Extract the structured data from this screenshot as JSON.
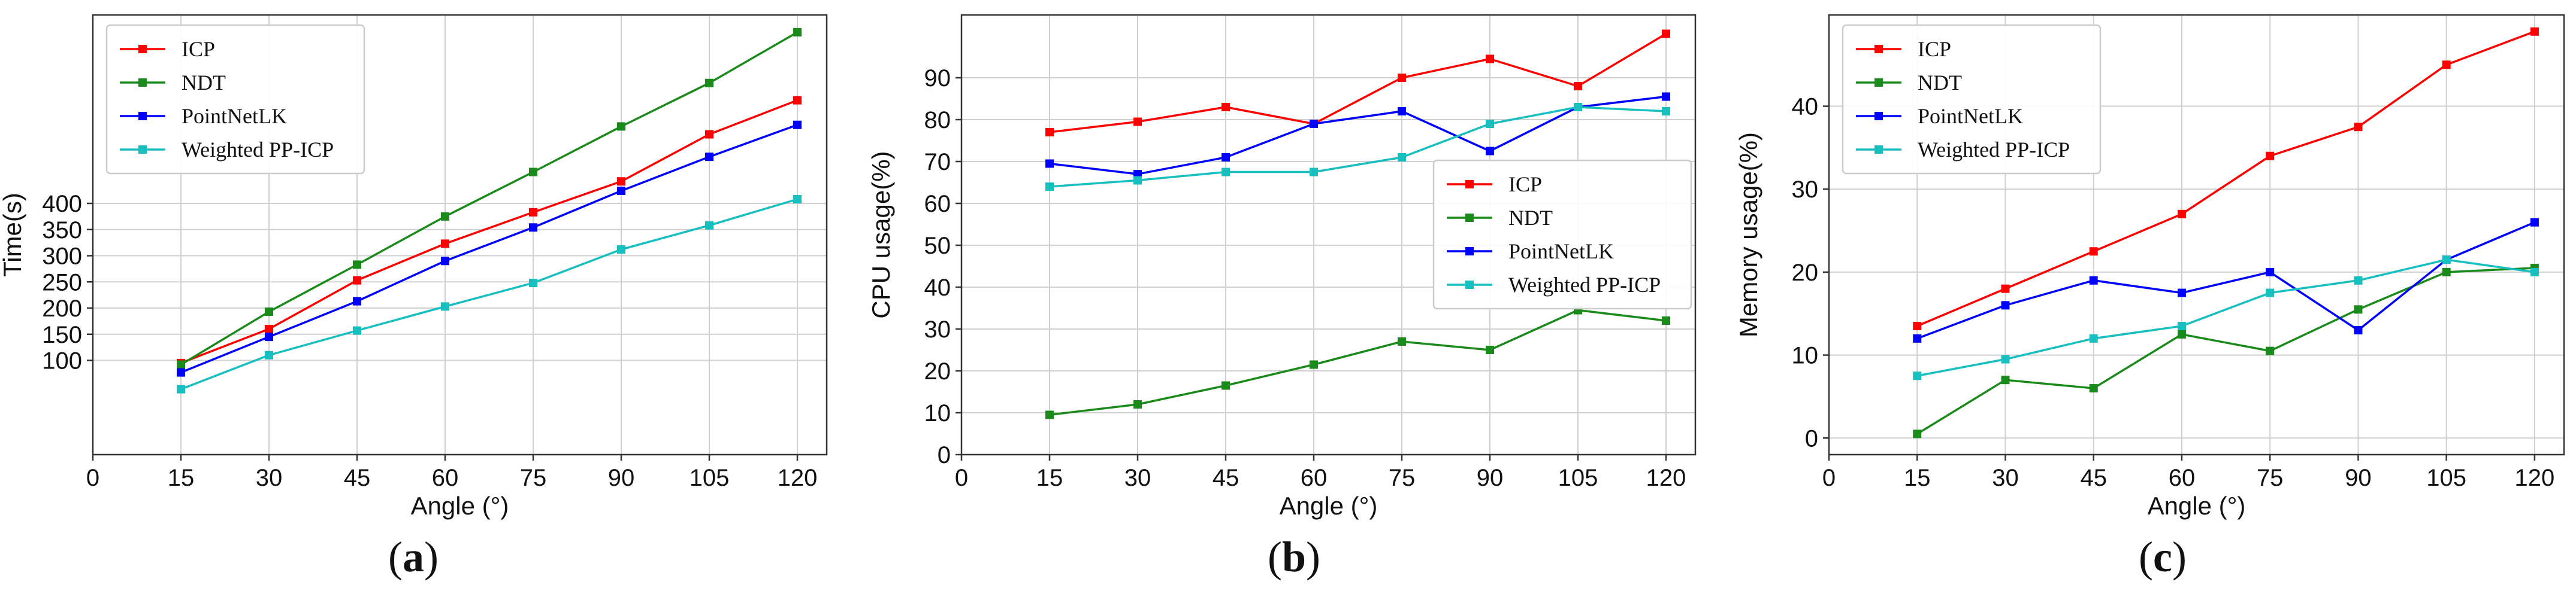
{
  "colors": {
    "ICP": "#ff0000",
    "NDT": "#1a8a1a",
    "PointNetLK": "#0000ff",
    "Weighted PP-ICP": "#18bfbf",
    "grid": "#cfcfcf",
    "axis": "#333333"
  },
  "chart_data": [
    {
      "type": "line",
      "panel": "a",
      "xlabel": "Angle (°)",
      "ylabel": "Time(s)",
      "xlim": [
        0,
        125
      ],
      "ylim": [
        -80,
        760
      ],
      "xticks": [
        0,
        15,
        30,
        45,
        60,
        75,
        90,
        105,
        120
      ],
      "yticks": [
        100,
        150,
        200,
        250,
        300,
        350,
        400
      ],
      "legend_position": "top-left",
      "x": [
        15,
        30,
        45,
        60,
        75,
        90,
        105,
        120
      ],
      "series": [
        {
          "name": "ICP",
          "values": [
            95,
            160,
            253,
            323,
            383,
            442,
            532,
            597
          ]
        },
        {
          "name": "NDT",
          "values": [
            92,
            193,
            283,
            375,
            460,
            547,
            630,
            727
          ]
        },
        {
          "name": "PointNetLK",
          "values": [
            77,
            145,
            213,
            290,
            354,
            424,
            489,
            550
          ]
        },
        {
          "name": "Weighted PP-ICP",
          "values": [
            45,
            110,
            157,
            203,
            248,
            312,
            358,
            408
          ]
        }
      ]
    },
    {
      "type": "line",
      "panel": "b",
      "xlabel": "Angle (°)",
      "ylabel": "CPU usage(%)",
      "xlim": [
        0,
        125
      ],
      "ylim": [
        0,
        105
      ],
      "xticks": [
        0,
        15,
        30,
        45,
        60,
        75,
        90,
        105,
        120
      ],
      "yticks": [
        0,
        10,
        20,
        30,
        40,
        50,
        60,
        70,
        80,
        90
      ],
      "legend_position": "center-right",
      "x": [
        15,
        30,
        45,
        60,
        75,
        90,
        105,
        120
      ],
      "series": [
        {
          "name": "ICP",
          "values": [
            77,
            79.5,
            83,
            79,
            90,
            94.5,
            88,
            100.5
          ]
        },
        {
          "name": "NDT",
          "values": [
            9.5,
            12,
            16.5,
            21.5,
            27,
            25,
            34.5,
            32
          ]
        },
        {
          "name": "PointNetLK",
          "values": [
            69.5,
            67,
            71,
            79,
            82,
            72.5,
            83,
            85.5
          ]
        },
        {
          "name": "Weighted PP-ICP",
          "values": [
            64,
            65.5,
            67.5,
            67.5,
            71,
            79,
            83,
            82
          ]
        }
      ]
    },
    {
      "type": "line",
      "panel": "c",
      "xlabel": "Angle (°)",
      "ylabel": "Memory usage(%)",
      "xlim": [
        0,
        125
      ],
      "ylim": [
        -2,
        51
      ],
      "xticks": [
        0,
        15,
        30,
        45,
        60,
        75,
        90,
        105,
        120
      ],
      "yticks": [
        0,
        10,
        20,
        30,
        40
      ],
      "legend_position": "top-left",
      "x": [
        15,
        30,
        45,
        60,
        75,
        90,
        105,
        120
      ],
      "series": [
        {
          "name": "ICP",
          "values": [
            13.5,
            18,
            22.5,
            27,
            34,
            37.5,
            45,
            49
          ]
        },
        {
          "name": "NDT",
          "values": [
            0.5,
            7,
            6,
            12.5,
            10.5,
            15.5,
            20,
            20.5
          ]
        },
        {
          "name": "PointNetLK",
          "values": [
            12,
            16,
            19,
            17.5,
            20,
            13,
            21.5,
            26
          ]
        },
        {
          "name": "Weighted PP-ICP",
          "values": [
            7.5,
            9.5,
            12,
            13.5,
            17.5,
            19,
            21.5,
            20
          ]
        }
      ]
    }
  ],
  "panel_labels": [
    "(a)",
    "(b)",
    "(c)"
  ]
}
